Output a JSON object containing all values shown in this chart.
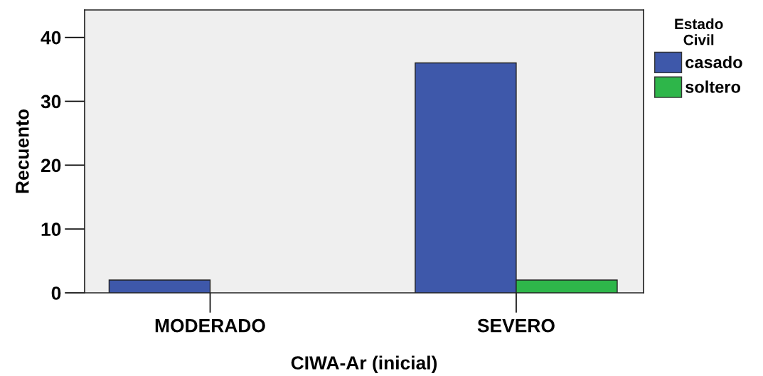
{
  "chart_data": {
    "type": "bar",
    "xlabel": "CIWA-Ar (inicial)",
    "ylabel": "Recuento",
    "legend_title": "Estado\nCivil",
    "categories": [
      "MODERADO",
      "SEVERO"
    ],
    "series": [
      {
        "name": "casado",
        "color": "#3e58aa",
        "values": [
          2,
          36
        ]
      },
      {
        "name": "soltero",
        "color": "#2eb64a",
        "values": [
          null,
          2
        ]
      }
    ],
    "ylim": [
      0,
      44.3
    ],
    "yticks": [
      0,
      10,
      20,
      30,
      40
    ],
    "grid": false,
    "legend": "right"
  }
}
